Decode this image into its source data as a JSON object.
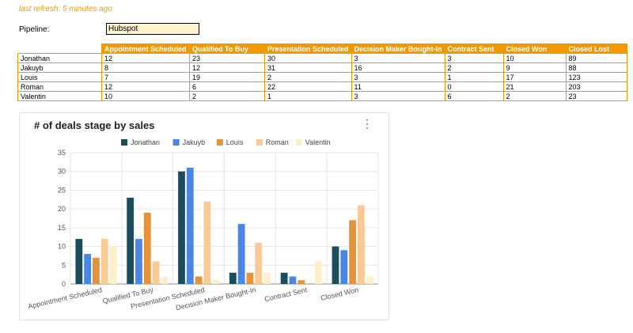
{
  "header": {
    "refresh_text": "last refresh: 5 minutes ago",
    "pipeline_label": "Pipeline:",
    "pipeline_value": "Hubspot"
  },
  "table": {
    "columns": [
      "Appointment Scheduled",
      "Qualified To Buy",
      "Presentation Scheduled",
      "Decision Maker Bought-In",
      "Contract Sent",
      "Closed Won",
      "Closed Lost"
    ],
    "rows": [
      {
        "name": "Jonathan",
        "values": [
          "12",
          "23",
          "30",
          "3",
          "3",
          "10",
          "89"
        ]
      },
      {
        "name": "Jakuyb",
        "values": [
          "8",
          "12",
          "31",
          "16",
          "2",
          "9",
          "88"
        ]
      },
      {
        "name": "Louis",
        "values": [
          "7",
          "19",
          "2",
          "3",
          "1",
          "17",
          "123"
        ]
      },
      {
        "name": "Roman",
        "values": [
          "12",
          "6",
          "22",
          "11",
          "0",
          "21",
          "203"
        ]
      },
      {
        "name": "Valentin",
        "values": [
          "10",
          "2",
          "1",
          "3",
          "6",
          "2",
          "23"
        ]
      }
    ]
  },
  "colors": {
    "accent": "#f29900",
    "header_text": "#ffffff",
    "pipeline_bg": "#fff2cc"
  },
  "chart": {
    "menu_icon": "kebab-menu-icon"
  },
  "chart_data": {
    "type": "bar",
    "title": "# of deals stage by sales",
    "categories": [
      "Appointment Scheduled",
      "Qualified To Buy",
      "Presentation Scheduled",
      "Decision Maker Bought-In",
      "Contract Sent",
      "Closed Won"
    ],
    "series": [
      {
        "name": "Jonathan",
        "color": "#1b4d5c",
        "values": [
          12,
          23,
          30,
          3,
          3,
          10
        ]
      },
      {
        "name": "Jakuyb",
        "color": "#4a86e8",
        "values": [
          8,
          12,
          31,
          16,
          2,
          9
        ]
      },
      {
        "name": "Louis",
        "color": "#e6923a",
        "values": [
          7,
          19,
          2,
          3,
          1,
          17
        ]
      },
      {
        "name": "Roman",
        "color": "#f9c996",
        "values": [
          12,
          6,
          22,
          11,
          0,
          21
        ]
      },
      {
        "name": "Valentin",
        "color": "#fdf0c8",
        "values": [
          10,
          2,
          1,
          3,
          6,
          2
        ]
      }
    ],
    "ylim": [
      0,
      35
    ],
    "yticks": [
      0,
      5,
      10,
      15,
      20,
      25,
      30,
      35
    ],
    "xlabel": "",
    "ylabel": "",
    "legend": "top",
    "grid": true
  }
}
